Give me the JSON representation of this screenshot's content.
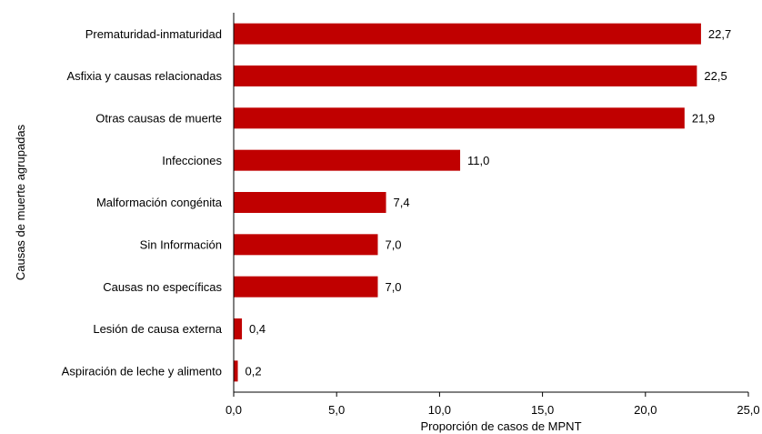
{
  "chart_data": {
    "type": "bar",
    "orientation": "horizontal",
    "categories": [
      "Prematuridad-inmaturidad",
      "Asfixia y causas relacionadas",
      "Otras causas de muerte",
      "Infecciones",
      "Malformación congénita",
      "Sin Información",
      "Causas no específicas",
      "Lesión de causa externa",
      "Aspiración de leche y alimento"
    ],
    "values": [
      22.7,
      22.5,
      21.9,
      11.0,
      7.4,
      7.0,
      7.0,
      0.4,
      0.2
    ],
    "value_labels": [
      "22,7",
      "22,5",
      "21,9",
      "11,0",
      "7,4",
      "7,0",
      "7,0",
      "0,4",
      "0,2"
    ],
    "xlabel": "Proporción de casos de MPNT",
    "ylabel": "Causas de muerte agrupadas",
    "xlim": [
      0,
      25
    ],
    "xticks": [
      0,
      5,
      10,
      15,
      20,
      25
    ],
    "xtick_labels": [
      "0,0",
      "5,0",
      "10,0",
      "15,0",
      "20,0",
      "25,0"
    ],
    "grid": false,
    "bar_color": "#C00000"
  }
}
